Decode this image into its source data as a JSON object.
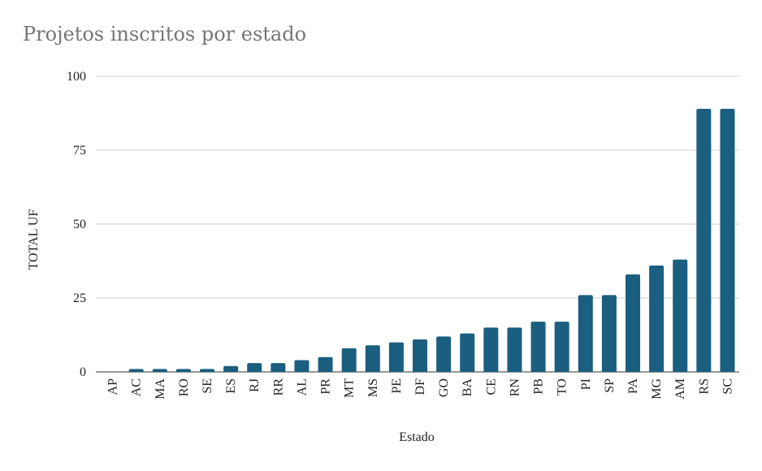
{
  "chart_data": {
    "type": "bar",
    "title": "Projetos inscritos por estado",
    "xlabel": "Estado",
    "ylabel": "TOTAL UF",
    "categories": [
      "AP",
      "AC",
      "MA",
      "RO",
      "SE",
      "ES",
      "RJ",
      "RR",
      "AL",
      "PR",
      "MT",
      "MS",
      "PE",
      "DF",
      "GO",
      "BA",
      "CE",
      "RN",
      "PB",
      "TO",
      "PI",
      "SP",
      "PA",
      "MG",
      "AM",
      "RS",
      "SC"
    ],
    "values": [
      0,
      1,
      1,
      1,
      1,
      2,
      3,
      3,
      4,
      5,
      8,
      9,
      10,
      11,
      12,
      13,
      15,
      15,
      17,
      17,
      26,
      26,
      33,
      36,
      38,
      89,
      89
    ],
    "ylim": [
      0,
      100
    ],
    "yticks": [
      0,
      25,
      50,
      75,
      100
    ],
    "grid": true,
    "legend": "none",
    "bar_color": "#1a5e80",
    "grid_color": "#cccccc"
  }
}
